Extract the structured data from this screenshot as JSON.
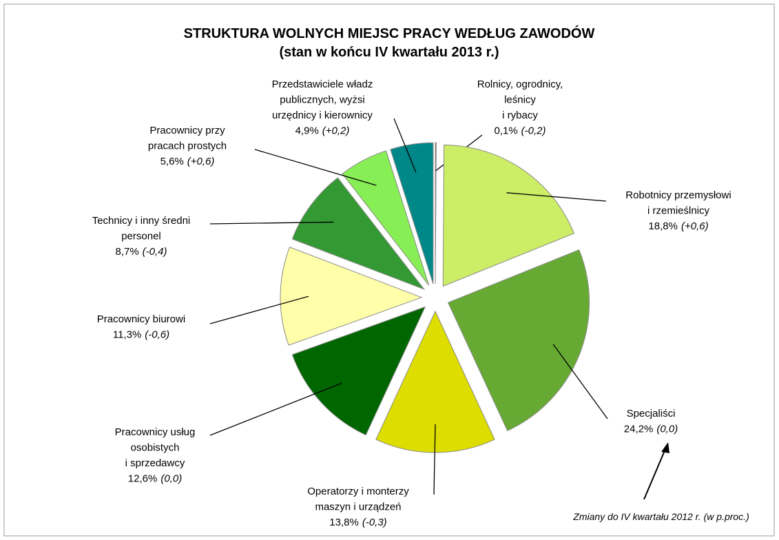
{
  "chart_data": {
    "type": "pie",
    "title": "STRUKTURA WOLNYCH MIEJSC PRACY WEDŁUG ZAWODÓW",
    "subtitle": "(stan w końcu IV kwartału 2013 r.)",
    "categories": [
      "Rolnicy, ogrodnicy,\nleśnicy\ni rybacy",
      "Robotnicy przemysłowi\ni rzemieślnicy",
      "Specjaliści",
      "Operatorzy i monterzy\nmaszyn i urządzeń",
      "Pracownicy usług\nosobistych\ni sprzedawcy",
      "Pracownicy biurowi",
      "Technicy i inny średni\npersonel",
      "Pracownicy przy\npracach prostych",
      "Przedstawiciele władz\npublicznych, wyżsi\nurzędnicy i kierownicy"
    ],
    "values": [
      0.1,
      18.8,
      24.2,
      13.8,
      12.6,
      11.3,
      8.7,
      5.6,
      4.9
    ],
    "value_labels": [
      "0,1%",
      "18,8%",
      "24,2%",
      "13,8%",
      "12,6%",
      "11,3%",
      "8,7%",
      "5,6%",
      "4,9%"
    ],
    "changes": [
      "(-0,2)",
      "(+0,6)",
      "(0,0)",
      "(-0,3)",
      "(0,0)",
      "(-0,6)",
      "(-0,4)",
      "(+0,6)",
      "(+0,2)"
    ],
    "colors": [
      "#8b3a1a",
      "#ccee66",
      "#66aa33",
      "#dddd00",
      "#006600",
      "#ffffaa",
      "#339933",
      "#88ee55",
      "#008888"
    ],
    "annotation": "Zmiany do IV kwartału 2012 r. (w p.proc.)"
  }
}
